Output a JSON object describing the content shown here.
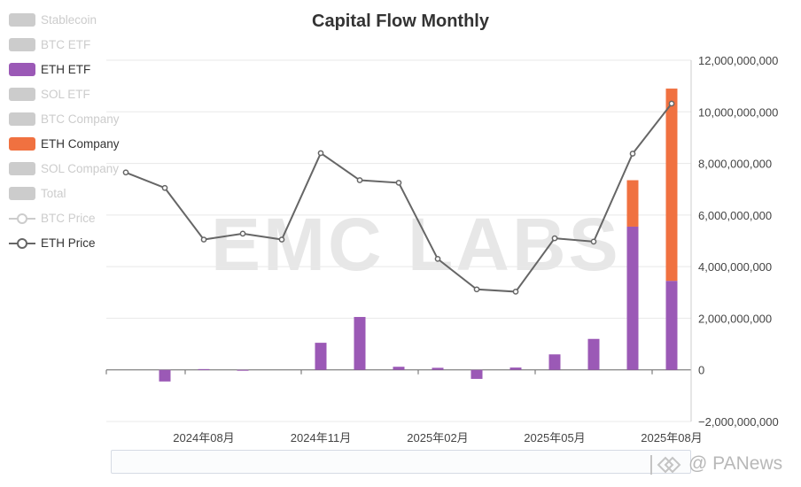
{
  "title": "Capital Flow Monthly",
  "watermark": "EMC LABS",
  "brand": {
    "text": "@ PANews"
  },
  "legend": [
    {
      "label": "Stablecoin",
      "active": false,
      "kind": "box",
      "color": "#cccccc"
    },
    {
      "label": "BTC ETF",
      "active": false,
      "kind": "box",
      "color": "#cccccc"
    },
    {
      "label": "ETH ETF",
      "active": true,
      "kind": "box",
      "color": "#9b59b6"
    },
    {
      "label": "SOL ETF",
      "active": false,
      "kind": "box",
      "color": "#cccccc"
    },
    {
      "label": "BTC Company",
      "active": false,
      "kind": "box",
      "color": "#cccccc"
    },
    {
      "label": "ETH Company",
      "active": true,
      "kind": "box",
      "color": "#f07140"
    },
    {
      "label": "SOL Company",
      "active": false,
      "kind": "box",
      "color": "#cccccc"
    },
    {
      "label": "Total",
      "active": false,
      "kind": "box",
      "color": "#cccccc"
    },
    {
      "label": "BTC Price",
      "active": false,
      "kind": "line",
      "color": "#cccccc"
    },
    {
      "label": "ETH Price",
      "active": true,
      "kind": "line",
      "color": "#666666"
    }
  ],
  "chart_data": {
    "type": "bar",
    "title": "Capital Flow Monthly",
    "categories": [
      "2024-06",
      "2024-07",
      "2024-08",
      "2024-09",
      "2024-10",
      "2024-11",
      "2024-12",
      "2025-01",
      "2025-02",
      "2025-03",
      "2025-04",
      "2025-05",
      "2025-06",
      "2025-07",
      "2025-08"
    ],
    "x_tick_labels": [
      "2024年08月",
      "2024年11月",
      "2025年02月",
      "2025年05月",
      "2025年08月"
    ],
    "y_right_ticks": [
      "12,000,000,000",
      "10,000,000,000",
      "8,000,000,000",
      "6,000,000,000",
      "4,000,000,000",
      "2,000,000,000",
      "0",
      "−2,000,000,000"
    ],
    "ylim": [
      -2000000000,
      12000000000
    ],
    "series": [
      {
        "name": "ETH ETF",
        "color": "#9b59b6",
        "stack": true,
        "values": [
          0,
          -450000000,
          30000000,
          -20000000,
          0,
          1050000000,
          2050000000,
          120000000,
          80000000,
          -350000000,
          90000000,
          600000000,
          1200000000,
          5550000000,
          3450000000
        ]
      },
      {
        "name": "ETH Company",
        "color": "#f07140",
        "stack": true,
        "values": [
          0,
          0,
          0,
          0,
          0,
          0,
          0,
          0,
          0,
          0,
          0,
          0,
          0,
          1800000000,
          7450000000
        ]
      },
      {
        "name": "ETH Price",
        "color": "#666666",
        "type": "line",
        "values": [
          7650000000,
          7050000000,
          5050000000,
          5280000000,
          5050000000,
          8400000000,
          7350000000,
          7250000000,
          4300000000,
          3120000000,
          3030000000,
          5100000000,
          4970000000,
          8380000000,
          10320000000
        ]
      }
    ],
    "grid": true,
    "legend_position": "left"
  }
}
